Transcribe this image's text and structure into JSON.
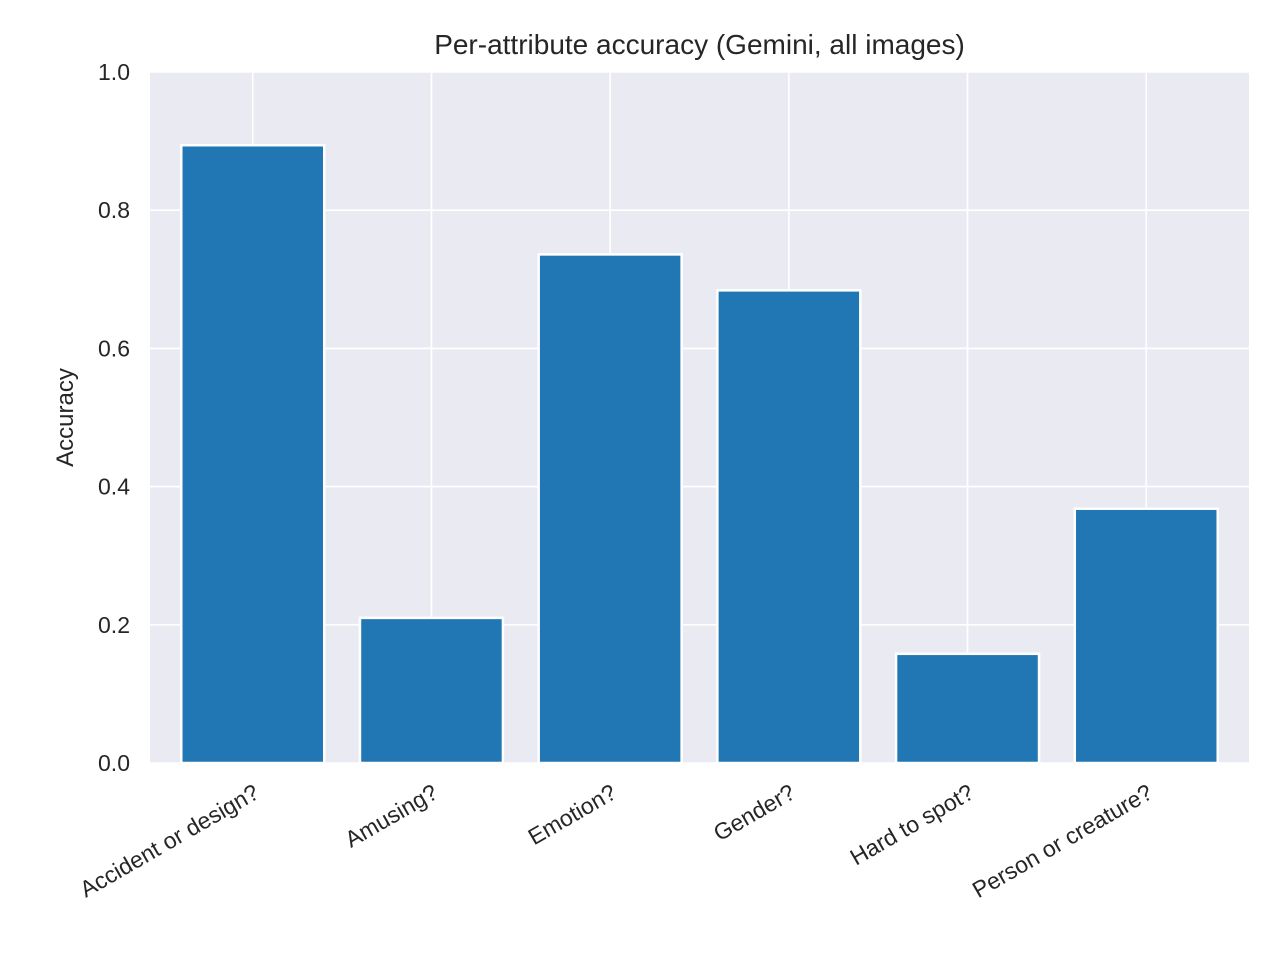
{
  "chart_data": {
    "type": "bar",
    "title": "Per-attribute accuracy (Gemini, all images)",
    "xlabel": "",
    "ylabel": "Accuracy",
    "categories": [
      "Accident or design?",
      "Amusing?",
      "Emotion?",
      "Gender?",
      "Hard to spot?",
      "Person or creature?"
    ],
    "values": [
      0.894,
      0.21,
      0.736,
      0.684,
      0.158,
      0.368
    ],
    "ylim": [
      0,
      1.0
    ],
    "yticks": [
      0.0,
      0.2,
      0.4,
      0.6,
      0.8,
      1.0
    ],
    "ytick_labels": [
      "0.0",
      "0.2",
      "0.4",
      "0.6",
      "0.8",
      "1.0"
    ],
    "grid": true,
    "legend": "none",
    "colors": {
      "bar": "#2077b4",
      "plot_background": "#eaeaf2",
      "grid": "#ffffff",
      "text": "#262626"
    }
  }
}
